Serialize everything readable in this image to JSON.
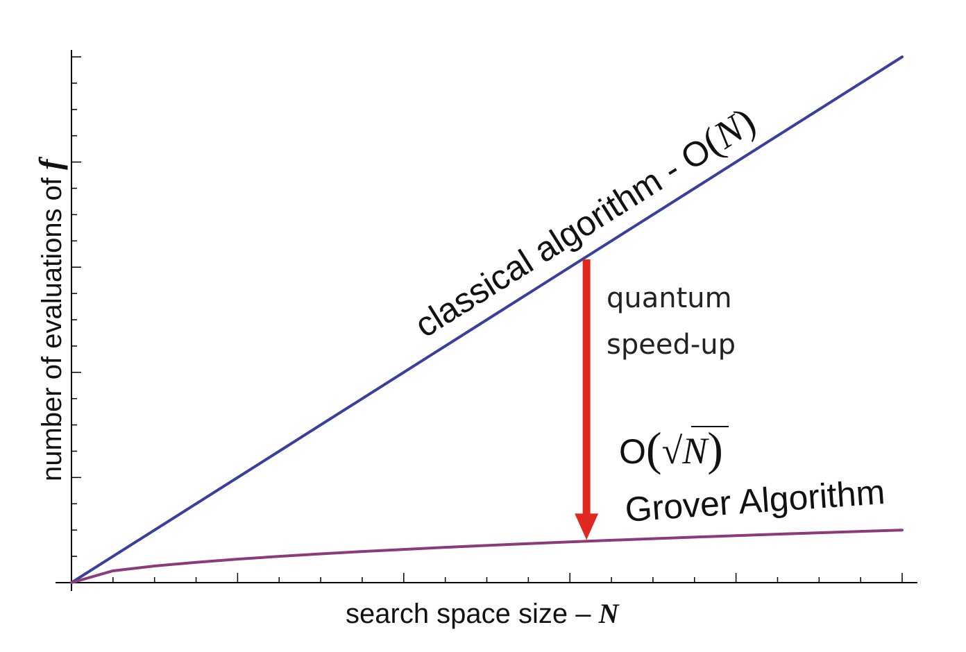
{
  "chart_data": {
    "type": "line",
    "xlabel_text": "search space size – ",
    "xlabel_var": "N",
    "ylabel_text": "number of evaluations of ",
    "ylabel_var": "f",
    "grid": false,
    "legend": "none",
    "x": [
      0,
      5,
      10,
      15,
      20,
      25,
      30,
      35,
      40,
      45,
      50,
      55,
      60,
      65,
      70,
      75,
      80,
      85,
      90,
      95,
      100
    ],
    "series": [
      {
        "name": "classical algorithm",
        "complexity_prefix": "- O",
        "complexity_var": "N",
        "color": "#3a3f9a",
        "values": [
          0,
          5,
          10,
          15,
          20,
          25,
          30,
          35,
          40,
          45,
          50,
          55,
          60,
          65,
          70,
          75,
          80,
          85,
          90,
          95,
          100
        ]
      },
      {
        "name": "Grover Algorithm",
        "complexity_prefix": "O",
        "complexity_sqrt": "√",
        "complexity_var": "N",
        "color": "#8b3a7a",
        "values": [
          0,
          2.24,
          3.16,
          3.87,
          4.47,
          5.0,
          5.48,
          5.92,
          6.32,
          6.71,
          7.07,
          7.42,
          7.75,
          8.06,
          8.37,
          8.66,
          8.94,
          9.22,
          9.49,
          9.75,
          10.0
        ]
      }
    ],
    "annotation": {
      "line1": "quantum",
      "line2": "speed-up",
      "arrow_color": "#e0281e",
      "x": 62
    },
    "xlim": [
      0,
      100
    ],
    "ylim": [
      0,
      100
    ]
  }
}
